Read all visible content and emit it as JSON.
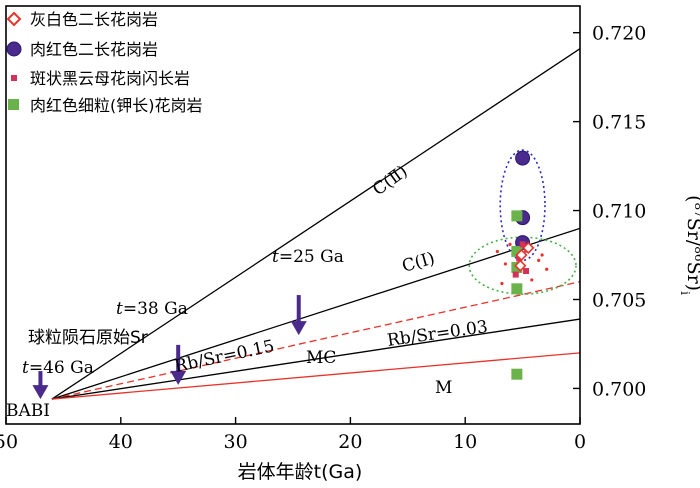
{
  "chart_data": {
    "type": "scatter",
    "title": "",
    "xlabel": "岩体年龄t(Ga)",
    "ylabel": "(87Sr/86Sr)i",
    "ylabel_parts": {
      "open": "(",
      "m1": "87",
      "sr1": "Sr/",
      "m2": "86",
      "sr2": "Sr)",
      "sub": "i"
    },
    "xlim": [
      50,
      0
    ],
    "ylim": [
      0.698,
      0.7215
    ],
    "x_ticks": [
      50,
      40,
      30,
      20,
      10,
      0
    ],
    "y_ticks": [
      0.7,
      0.705,
      0.71,
      0.715,
      0.72
    ],
    "y_tick_labels": [
      "0.700",
      "0.705",
      "0.710",
      "0.715",
      "0.720"
    ],
    "legend_position": "top-left",
    "legend": [
      {
        "label": "灰白色二长花岗岩",
        "marker": "diamond-open",
        "color": "#e8322a"
      },
      {
        "label": "肉红色二长花岗岩",
        "marker": "circle",
        "color": "#4a2a8c"
      },
      {
        "label": "斑状黑云母花岗闪长岩",
        "marker": "square-small",
        "color": "#d2325a"
      },
      {
        "label": "肉红色细粒(钾长)花岗岩",
        "marker": "square",
        "color": "#6ab34a"
      }
    ],
    "evolution_lines": [
      {
        "name": "C(II)",
        "from": [
          46,
          0.6994
        ],
        "to": [
          0,
          0.7191
        ],
        "color": "#000000",
        "dash": false
      },
      {
        "name": "C(I)",
        "from": [
          46,
          0.6994
        ],
        "to": [
          0,
          0.709
        ],
        "color": "#000000",
        "dash": false
      },
      {
        "name": "Rb/Sr=0.15",
        "from": [
          46,
          0.6994
        ],
        "to": [
          0,
          0.706
        ],
        "color": "#e8322a",
        "dash": true
      },
      {
        "name": "Rb/Sr=0.03",
        "from": [
          46,
          0.6994
        ],
        "to": [
          0,
          0.7039
        ],
        "color": "#000000",
        "dash": false
      },
      {
        "name": "M",
        "from": [
          46,
          0.6994
        ],
        "to": [
          0,
          0.702
        ],
        "color": "#e8322a",
        "dash": false
      }
    ],
    "series": [
      {
        "name": "肉红色二长花岗岩",
        "marker": "circle",
        "points": [
          [
            5,
            0.71295
          ],
          [
            5,
            0.7096
          ],
          [
            5,
            0.7082
          ]
        ]
      },
      {
        "name": "肉红色细粒(钾长)花岗岩",
        "marker": "square",
        "points": [
          [
            5.5,
            0.7097
          ],
          [
            5.5,
            0.7077
          ],
          [
            5.5,
            0.7068
          ],
          [
            5.5,
            0.7056
          ],
          [
            5.5,
            0.7008
          ]
        ]
      },
      {
        "name": "斑状黑云母花岗闪长岩",
        "marker": "square-small",
        "points": [
          [
            5,
            0.7081
          ],
          [
            4.6,
            0.7078
          ],
          [
            5.3,
            0.7073
          ],
          [
            4.7,
            0.7066
          ],
          [
            5.6,
            0.7064
          ]
        ]
      },
      {
        "name": "灰白色二长花岗岩",
        "marker": "diamond-open",
        "points": [
          [
            4.5,
            0.7079
          ],
          [
            5.2,
            0.7069
          ],
          [
            5.1,
            0.7075
          ]
        ]
      },
      {
        "name": "scatter-dots",
        "marker": "dot",
        "points": [
          [
            7.2,
            0.7077
          ],
          [
            6.5,
            0.707
          ],
          [
            6.8,
            0.7059
          ],
          [
            3.6,
            0.7072
          ],
          [
            2.9,
            0.7067
          ],
          [
            4.2,
            0.7061
          ],
          [
            6.1,
            0.7081
          ],
          [
            3.3,
            0.7075
          ]
        ]
      }
    ],
    "ellipses": [
      {
        "name": "肉红色二长花岗岩-group",
        "center": [
          5,
          0.7103
        ],
        "rx_t": 1.95,
        "ry_y": 0.0031,
        "color": "#2a2ac8"
      },
      {
        "name": "花岗闪长岩-group",
        "center": [
          5,
          0.7069
        ],
        "rx_t": 4.65,
        "ry_y": 0.0016,
        "color": "#4ab04a"
      }
    ],
    "annotations": {
      "babi": "BABI",
      "t46": {
        "t": "t",
        "rest": "=46 Ga"
      },
      "t38": {
        "t": "t",
        "rest": "=38 Ga"
      },
      "t25": {
        "t": "t",
        "rest": "=25 Ga"
      },
      "chondrite": "球粒陨石原始Sr",
      "c2": "C(Ⅱ)",
      "c1": "C(Ⅰ)",
      "rb015": "Rb/Sr=0.15",
      "rb003": "Rb/Sr=0.03",
      "mc": "MC",
      "m": "M"
    },
    "arrow_points": [
      {
        "name": "t46",
        "at": [
          47,
          0.6994
        ]
      },
      {
        "name": "t38",
        "at": [
          35,
          0.7002
        ]
      },
      {
        "name": "t25",
        "at": [
          24.5,
          0.703
        ]
      }
    ],
    "colors": {
      "axis": "#000000",
      "arrow_fill": "#4a2a8c",
      "red_line": "#e8322a",
      "diamond": "#e8322a",
      "circle": "#4a2a8c",
      "small_square": "#d2325a",
      "square": "#6ab34a",
      "dot": "#e8322a"
    }
  }
}
